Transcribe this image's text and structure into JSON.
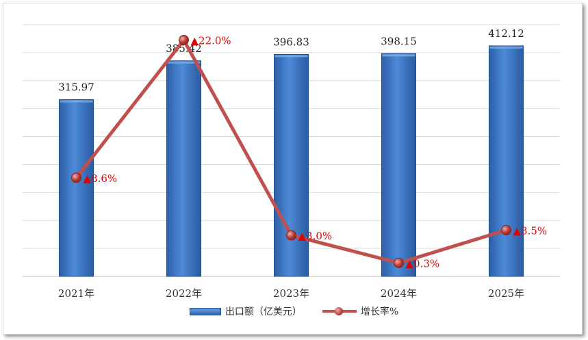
{
  "chart_data": {
    "type": "bar",
    "categories": [
      "2021年",
      "2022年",
      "2023年",
      "2024年",
      "2025年"
    ],
    "series": [
      {
        "name": "出口额（亿美元）",
        "type": "bar",
        "values": [
          315.97,
          385.42,
          396.83,
          398.15,
          412.12
        ],
        "labels": [
          "315.97",
          "385.42",
          "396.83",
          "398.15",
          "412.12"
        ],
        "color": "#3a78c9"
      },
      {
        "name": "增长率%",
        "type": "line",
        "values": [
          8.6,
          22.0,
          3.0,
          0.3,
          3.5
        ],
        "labels": [
          "▲8.6%",
          "▲22.0%",
          "▲3.0%",
          "▲0.3%",
          "▲3.5%"
        ],
        "color": "#c0504d"
      }
    ],
    "bar_axis_range": [
      0,
      450
    ],
    "line_axis_range": [
      -1,
      23.5
    ],
    "grid": true,
    "legend_position": "bottom",
    "label_color": "#e00000"
  }
}
